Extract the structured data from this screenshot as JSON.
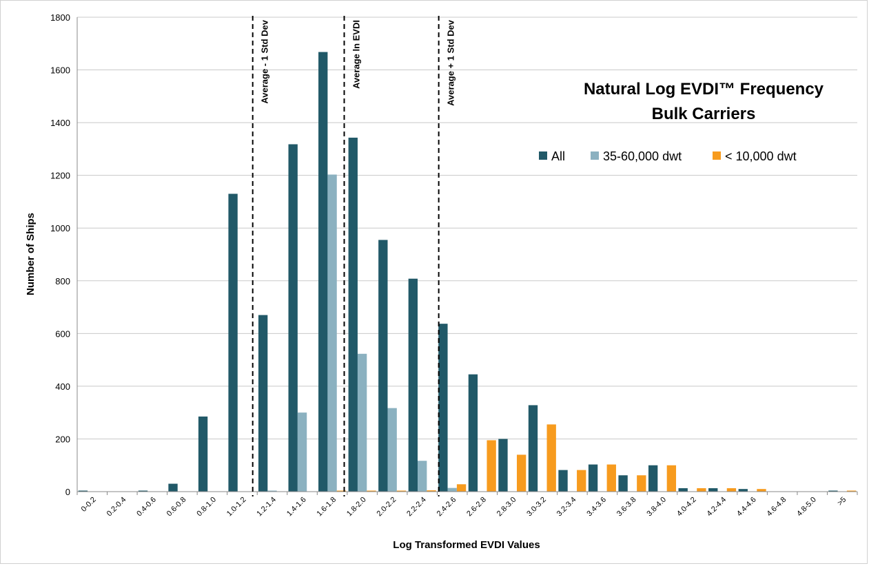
{
  "chart_data": {
    "type": "bar",
    "title_line1": "Natural Log EVDI™ Frequency",
    "title_line2": "Bulk Carriers",
    "xlabel": "Log Transformed EVDI Values",
    "ylabel": "Number of Ships",
    "ylim": [
      0,
      1800
    ],
    "yticks": [
      0,
      200,
      400,
      600,
      800,
      1000,
      1200,
      1400,
      1600,
      1800
    ],
    "grid": true,
    "legend_position": "top-right",
    "categories": [
      "0-0.2",
      "0.2-0.4",
      "0.4-0.6",
      "0.6-0.8",
      "0.8-1.0",
      "1.0-1.2",
      "1.2-1.4",
      "1.4-1.6",
      "1.6-1.8",
      "1.8-2.0",
      "2.0-2.2",
      "2.2-2.4",
      "2.4-2.6",
      "2.6-2.8",
      "2.8-3.0",
      "3.0-3.2",
      "3.2-3.4",
      "3.4-3.6",
      "3.6-3.8",
      "3.8-4.0",
      "4.0-4.2",
      "4.2-4.4",
      "4.4-4.6",
      "4.6-4.8",
      "4.8-5.0",
      ">5"
    ],
    "series": [
      {
        "name": "All",
        "color": "#215968",
        "values": [
          2,
          0,
          2,
          30,
          285,
          1130,
          670,
          1318,
          1668,
          1343,
          955,
          808,
          637,
          445,
          200,
          328,
          82,
          103,
          62,
          100,
          13,
          13,
          10,
          0,
          0,
          2
        ]
      },
      {
        "name": "35-60,000 dwt",
        "color": "#8bb1c0",
        "values": [
          0,
          0,
          0,
          0,
          0,
          0,
          4,
          300,
          1203,
          523,
          317,
          117,
          14,
          0,
          0,
          0,
          0,
          0,
          0,
          0,
          0,
          0,
          0,
          0,
          0,
          0
        ]
      },
      {
        "name": "< 10,000 dwt",
        "color": "#f79b1e",
        "values": [
          0,
          0,
          0,
          0,
          0,
          0,
          0,
          0,
          2,
          2,
          3,
          5,
          28,
          195,
          140,
          255,
          82,
          103,
          62,
          100,
          13,
          13,
          10,
          0,
          0,
          2
        ]
      }
    ],
    "annotations": [
      {
        "label": "Average - 1 Std Dev",
        "x": 1.17
      },
      {
        "label": "Average ln EVDI",
        "x": 1.78
      },
      {
        "label": "Average + 1 Std Dev",
        "x": 2.41
      }
    ]
  }
}
